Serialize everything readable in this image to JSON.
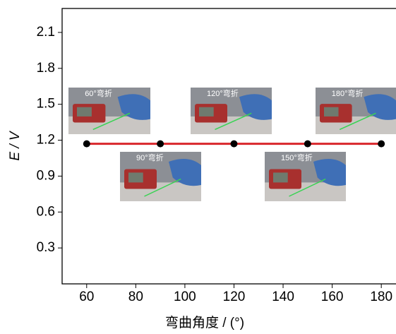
{
  "chart_data": {
    "type": "line",
    "x_label": "弯曲角度 / (°)",
    "y_label": "E / V",
    "x": [
      60,
      90,
      120,
      150,
      180
    ],
    "series": [
      {
        "color": "#d9262b",
        "marker_color": "#000000",
        "values": [
          1.17,
          1.17,
          1.17,
          1.17,
          1.17
        ]
      }
    ],
    "xlim": [
      50,
      188
    ],
    "xticks": [
      60,
      80,
      100,
      120,
      140,
      160,
      180
    ],
    "ylim": [
      0,
      2.3
    ],
    "yticks": [
      0.3,
      0.6,
      0.9,
      1.2,
      1.5,
      1.8,
      2.1
    ],
    "annotations": [
      "60°弯折",
      "90°弯折",
      "120°弯折",
      "150°弯折",
      "180°弯折"
    ]
  }
}
